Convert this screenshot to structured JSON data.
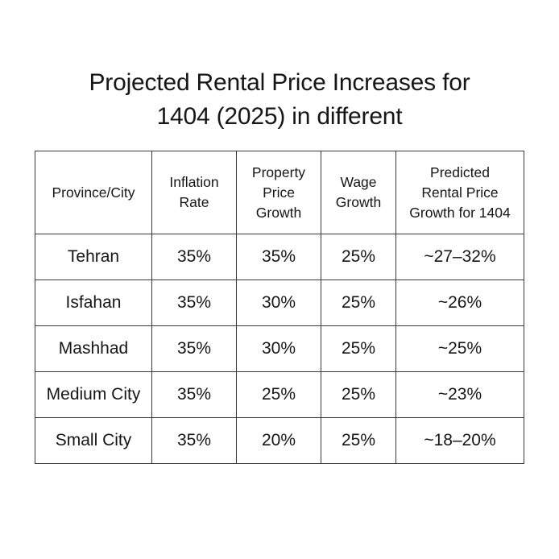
{
  "title": {
    "line1": "Projected Rental Price Increases for",
    "line2": "1404 (2025) in different"
  },
  "table": {
    "headers": [
      [
        "Province/City"
      ],
      [
        "Inflation",
        "Rate"
      ],
      [
        "Property",
        "Price",
        "Growth"
      ],
      [
        "Wage",
        "Growth"
      ],
      [
        "Predicted",
        "Rental Price",
        "Growth for 1404"
      ]
    ],
    "rows": [
      [
        "Tehran",
        "35%",
        "35%",
        "25%",
        "~27–32%"
      ],
      [
        "Isfahan",
        "35%",
        "30%",
        "25%",
        "~26%"
      ],
      [
        "Mashhad",
        "35%",
        "30%",
        "25%",
        "~25%"
      ],
      [
        "Medium City",
        "35%",
        "25%",
        "25%",
        "~23%"
      ],
      [
        "Small City",
        "35%",
        "20%",
        "25%",
        "~18–20%"
      ]
    ]
  }
}
